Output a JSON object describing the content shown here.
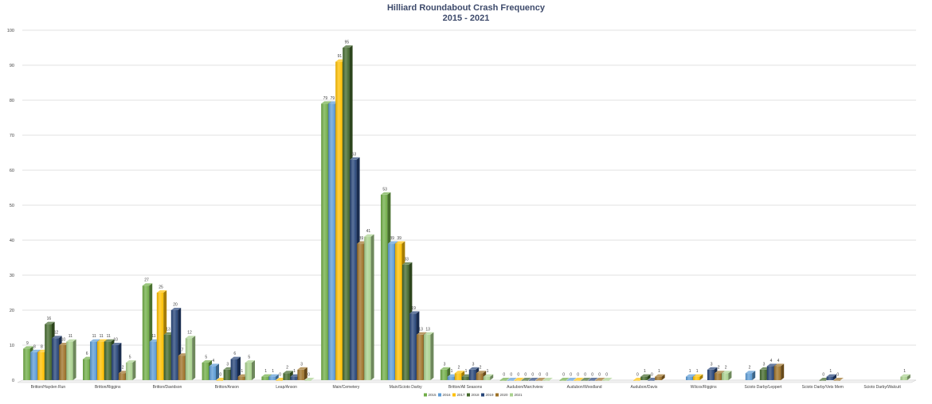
{
  "chart_data": {
    "type": "bar",
    "title": "Hilliard Roundabout Crash Frequency",
    "subtitle": "2015 - 2021",
    "xlabel": "",
    "ylabel": "",
    "ylim": [
      0,
      100
    ],
    "yticks": [
      0,
      10,
      20,
      30,
      40,
      50,
      60,
      70,
      80,
      90,
      100
    ],
    "grid": true,
    "legend_position": "bottom",
    "categories": [
      "Britton/Hayden Run",
      "Britton/Riggins",
      "Britton/Davidson",
      "Britton/Anson",
      "Leap/Anson",
      "Main/Cemetery",
      "Main/Scioto Darby",
      "Britton/All Seasons",
      "Audubon/Marchview",
      "Audubon/Woodland",
      "Audubon/Davis",
      "Wilcox/Riggins",
      "Scioto Darby/Leppert",
      "Scioto Darby/Vets Mem",
      "Scioto Darby/Walcutt"
    ],
    "series": [
      {
        "name": "2015",
        "color": "#70ad47",
        "values": [
          9,
          6,
          27,
          5,
          1,
          79,
          53,
          3,
          0,
          0,
          null,
          null,
          null,
          null,
          null
        ]
      },
      {
        "name": "2016",
        "color": "#5b9bd5",
        "values": [
          8,
          11,
          11,
          4,
          1,
          79,
          39,
          1,
          0,
          0,
          null,
          1,
          2,
          null,
          null
        ]
      },
      {
        "name": "2017",
        "color": "#ffc000",
        "values": [
          8,
          11,
          25,
          0,
          0,
          91,
          39,
          2,
          0,
          0,
          0,
          1,
          null,
          null,
          null
        ]
      },
      {
        "name": "2018",
        "color": "#43682b",
        "values": [
          16,
          11,
          13,
          3,
          2,
          95,
          33,
          1,
          0,
          0,
          1,
          null,
          3,
          0,
          null
        ]
      },
      {
        "name": "2019",
        "color": "#264478",
        "values": [
          12,
          10,
          20,
          6,
          1,
          63,
          19,
          3,
          0,
          0,
          0,
          3,
          4,
          1,
          null
        ]
      },
      {
        "name": "2020",
        "color": "#9e7126",
        "values": [
          10,
          2,
          7,
          1,
          3,
          39,
          13,
          2,
          0,
          0,
          1,
          2,
          4,
          0,
          null
        ]
      },
      {
        "name": "2021",
        "color": "#a9d18e",
        "values": [
          11,
          5,
          12,
          5,
          0,
          41,
          13,
          1,
          0,
          0,
          null,
          2,
          null,
          null,
          1
        ]
      }
    ]
  }
}
